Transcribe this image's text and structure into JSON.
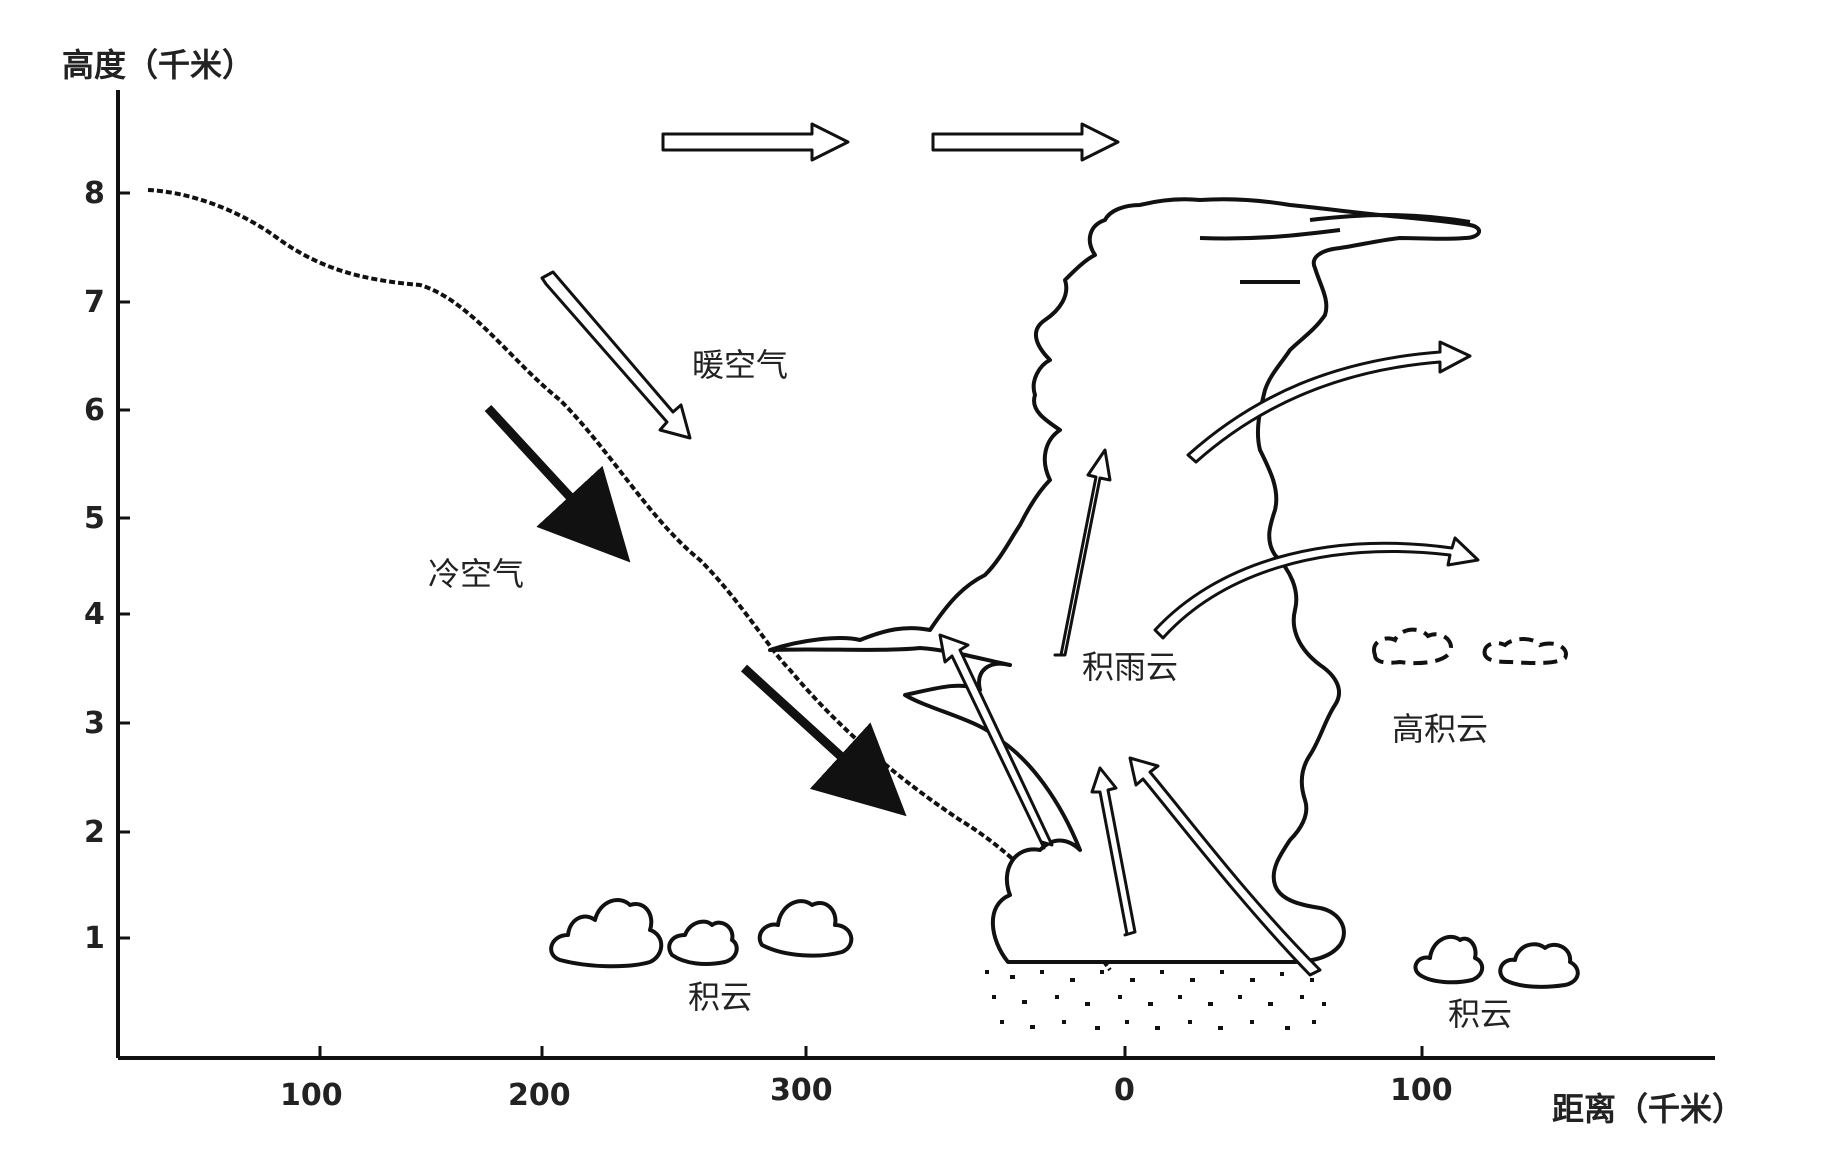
{
  "axes": {
    "y_title": "高度（千米）",
    "x_title": "距离（千米）",
    "y_ticks": [
      "1",
      "2",
      "3",
      "4",
      "5",
      "6",
      "7",
      "8"
    ],
    "x_ticks": [
      "100",
      "200",
      "300",
      "0",
      "100"
    ]
  },
  "labels": {
    "warm_air": "暖空气",
    "cold_air": "冷空气",
    "cumulonimbus": "积雨云",
    "altocumulus": "高积云",
    "cumulus_left": "积云",
    "cumulus_right": "积云"
  },
  "colors": {
    "ink": "#111111",
    "background": "#ffffff"
  }
}
